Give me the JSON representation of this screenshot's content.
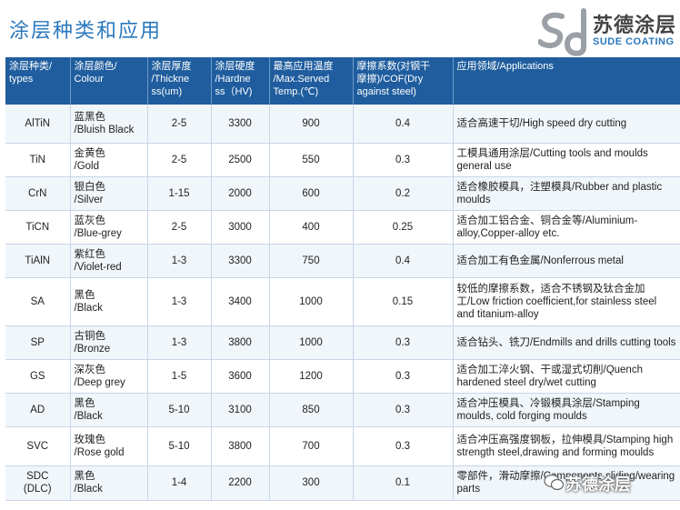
{
  "header": {
    "title": "涂层种类和应用"
  },
  "logo": {
    "cn": "苏德涂层",
    "en": "SUDE COATING",
    "mark": "sd"
  },
  "table": {
    "columns": [
      "涂层种类/\ntypes",
      "涂层颜色/\nColour",
      "涂层厚度\n/Thickne\nss(um)",
      "涂层硬度\n/Hardne\nss（HV)",
      "最高应用温度\n/Max.Served\nTemp.(℃)",
      "摩擦系数(对钢干\n摩擦)/COF(Dry\nagainst steel)",
      "应用领域/Applications"
    ],
    "rows": [
      {
        "type": "AlTiN",
        "colour": "蓝黑色\n/Bluish Black",
        "thickness": "2-5",
        "hardness": "3300",
        "temp": "900",
        "cof": "0.4",
        "app": "适合高速干切/High speed dry cutting"
      },
      {
        "type": "TiN",
        "colour": "金黄色\n/Gold",
        "thickness": "2-5",
        "hardness": "2500",
        "temp": "550",
        "cof": "0.3",
        "app": "工模具通用涂层/Cutting tools and moulds general use"
      },
      {
        "type": "CrN",
        "colour": "银白色\n/Silver",
        "thickness": "1-15",
        "hardness": "2000",
        "temp": "600",
        "cof": "0.2",
        "app": "适合橡胶模具，注塑模具/Rubber and plastic moulds"
      },
      {
        "type": "TiCN",
        "colour": "蓝灰色\n/Blue-grey",
        "thickness": "2-5",
        "hardness": "3000",
        "temp": "400",
        "cof": "0.25",
        "app": "适合加工铝合金、铜合金等/Aluminium-alloy,Copper-alloy etc."
      },
      {
        "type": "TiAlN",
        "colour": "紫红色\n/Violet-red",
        "thickness": "1-3",
        "hardness": "3300",
        "temp": "750",
        "cof": "0.4",
        "app": "适合加工有色金属/Nonferrous metal"
      },
      {
        "type": "SA",
        "colour": "黑色\n/Black",
        "thickness": "1-3",
        "hardness": "3400",
        "temp": "1000",
        "cof": "0.15",
        "app": "较低的摩擦系数，适合不锈钢及钛合金加工/Low friction coefficient,for stainless steel and titanium-alloy"
      },
      {
        "type": "SP",
        "colour": "古铜色\n/Bronze",
        "thickness": "1-3",
        "hardness": "3800",
        "temp": "1000",
        "cof": "0.3",
        "app": "适合钻头、铣刀/Endmills and drills cutting tools"
      },
      {
        "type": "GS",
        "colour": "深灰色\n/Deep grey",
        "thickness": "1-5",
        "hardness": "3600",
        "temp": "1200",
        "cof": "0.3",
        "app": "适合加工淬火钢、干或湿式切削/Quench hardened steel dry/wet cutting"
      },
      {
        "type": "AD",
        "colour": "黑色\n/Black",
        "thickness": "5-10",
        "hardness": "3100",
        "temp": "850",
        "cof": "0.3",
        "app": "适合冲压模具、冷锻模具涂层/Stamping moulds, cold forging moulds"
      },
      {
        "type": "SVC",
        "colour": "玫瑰色\n/Rose gold",
        "thickness": "5-10",
        "hardness": "3800",
        "temp": "700",
        "cof": "0.3",
        "app": "适合冲压高强度钢板，拉伸模具/Stamping high strength steel,drawing and forming moulds"
      },
      {
        "type": "SDC\n(DLC)",
        "colour": "黑色\n/Black",
        "thickness": "1-4",
        "hardness": "2200",
        "temp": "300",
        "cof": "0.1",
        "app": "零部件，滑动摩擦/Components sliding/wearing parts"
      }
    ]
  },
  "watermark": {
    "text": "苏德涂层"
  }
}
